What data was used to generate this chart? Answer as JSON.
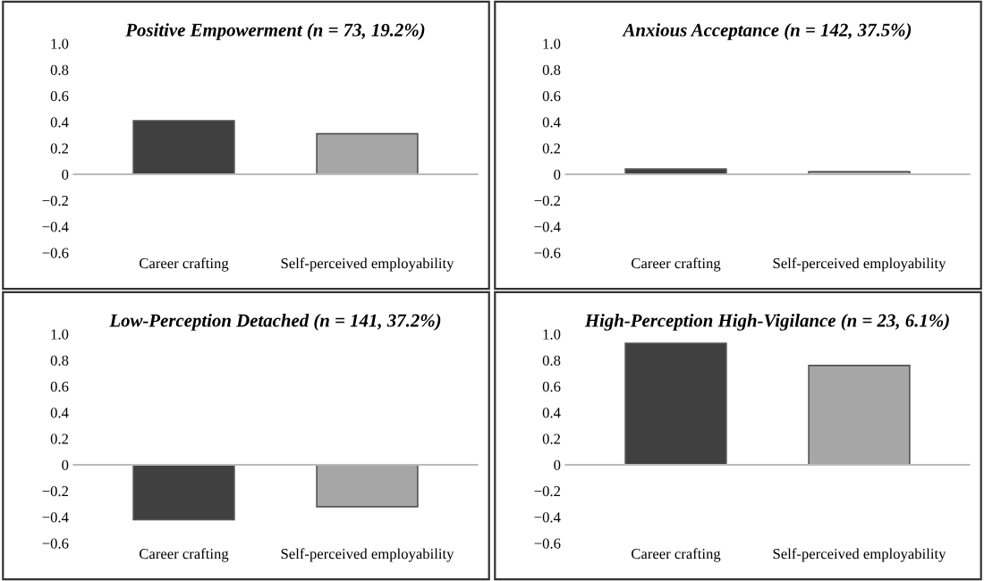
{
  "chart_data": [
    {
      "type": "bar",
      "title": "Positive Empowerment (n = 73, 19.2%)",
      "categories": [
        "Career crafting",
        "Self-perceived employability"
      ],
      "values": [
        0.41,
        0.31
      ],
      "colors": [
        "#404040",
        "#a6a6a6"
      ],
      "ylim": [
        -0.6,
        1.0
      ],
      "yticks": [
        {
          "value": -0.6,
          "label": "−0.6"
        },
        {
          "value": -0.4,
          "label": "−0.4"
        },
        {
          "value": -0.2,
          "label": "−0.2"
        },
        0,
        0.2,
        0.4,
        0.6,
        0.8,
        {
          "value": 1.0,
          "label": "1.0"
        }
      ]
    },
    {
      "type": "bar",
      "title": "Anxious Acceptance (n = 142, 37.5%)",
      "categories": [
        "Career crafting",
        "Self-perceived employability"
      ],
      "values": [
        0.04,
        0.02
      ],
      "colors": [
        "#404040",
        "#a6a6a6"
      ],
      "ylim": [
        -0.6,
        1.0
      ],
      "yticks": [
        {
          "value": -0.6,
          "label": "−0.6"
        },
        {
          "value": -0.4,
          "label": "−0.4"
        },
        {
          "value": -0.2,
          "label": "−0.2"
        },
        0,
        0.2,
        0.4,
        0.6,
        0.8,
        {
          "value": 1.0,
          "label": "1.0"
        }
      ]
    },
    {
      "type": "bar",
      "title": "Low-Perception Detached (n = 141, 37.2%)",
      "categories": [
        "Career crafting",
        "Self-perceived employability"
      ],
      "values": [
        -0.42,
        -0.32
      ],
      "colors": [
        "#404040",
        "#a6a6a6"
      ],
      "ylim": [
        -0.6,
        1.0
      ],
      "yticks": [
        {
          "value": -0.6,
          "label": "−0.6"
        },
        {
          "value": -0.4,
          "label": "−0.4"
        },
        {
          "value": -0.2,
          "label": "−0.2"
        },
        0,
        0.2,
        0.4,
        0.6,
        0.8,
        {
          "value": 1.0,
          "label": "1.0"
        }
      ]
    },
    {
      "type": "bar",
      "title": "High-Perception High-Vigilance (n = 23, 6.1%)",
      "categories": [
        "Career crafting",
        "Self-perceived employability"
      ],
      "values": [
        0.93,
        0.76
      ],
      "colors": [
        "#404040",
        "#a6a6a6"
      ],
      "ylim": [
        -0.6,
        1.0
      ],
      "yticks": [
        {
          "value": -0.6,
          "label": "−0.6"
        },
        {
          "value": -0.4,
          "label": "−0.4"
        },
        {
          "value": -0.2,
          "label": "−0.2"
        },
        0,
        0.2,
        0.4,
        0.6,
        0.8,
        {
          "value": 1.0,
          "label": "1.0"
        }
      ]
    }
  ]
}
